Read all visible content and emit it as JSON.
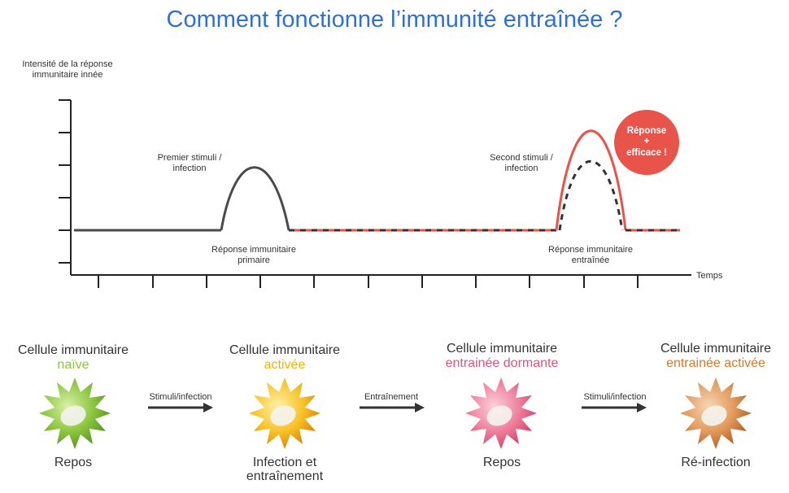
{
  "title": "Comment fonctionne l’immunité entraînée ?",
  "y_axis_label": "Intensité de la réponse immunitaire innée",
  "x_axis_label": "Temps",
  "annotations": {
    "first_stimulus": "Premier stimuli / infection",
    "first_response": "Réponse immunitaire primaire",
    "second_stimulus": "Second stimuli / infection",
    "second_response": "Réponse immunitaire entraînée",
    "badge_line1": "Réponse",
    "badge_line2": "+",
    "badge_line3": "efficace !"
  },
  "colors": {
    "title": "#2f6fd8",
    "primary_curve": "#4a4a4a",
    "trained_curve": "#e8534a",
    "badge": "#e8534a"
  },
  "stages": [
    {
      "line1": "Cellule immunitaire",
      "line2": "naïve",
      "line2_color": "#8cc63f",
      "state": "Repos",
      "cell_color": "#8cc63f",
      "cell_dark": "#5b9a24"
    },
    {
      "line1": "Cellule immunitaire",
      "line2": "activée",
      "line2_color": "#f5b400",
      "state": "Infection et entraînement",
      "cell_color": "#f8c22a",
      "cell_dark": "#e08a00"
    },
    {
      "line1": "Cellule immunitaire",
      "line2": "entrainée dormante",
      "line2_color": "#e0537a",
      "state": "Repos",
      "cell_color": "#ef7f9c",
      "cell_dark": "#d8456e"
    },
    {
      "line1": "Cellule immunitaire",
      "line2": "entrainée activée",
      "line2_color": "#d9772a",
      "state": "Ré-infection",
      "cell_color": "#e39a5c",
      "cell_dark": "#b8662a"
    }
  ],
  "transitions": [
    "Stimuli/infection",
    "Entraînement",
    "Stimuli/infection"
  ]
}
